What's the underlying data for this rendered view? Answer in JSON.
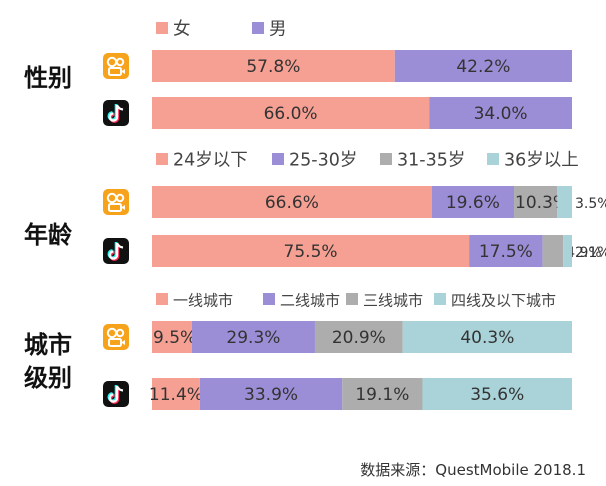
{
  "source": "数据来源：QuestMobile 2018.1",
  "apps": [
    {
      "icon": "kuaishou-app-icon",
      "color": "#f7a21b"
    },
    {
      "icon": "douyin-app-icon",
      "color": "#111111"
    }
  ],
  "chart_data": [
    {
      "type": "bar",
      "stacked": true,
      "orientation": "horizontal",
      "title": "性别",
      "legend": [
        "女",
        "男"
      ],
      "colors": [
        "#f6a093",
        "#9b8ed6"
      ],
      "rows": [
        {
          "app": "kuaishou",
          "values": [
            57.8,
            42.2
          ],
          "labels": [
            "57.8%",
            "42.2%"
          ]
        },
        {
          "app": "douyin",
          "values": [
            66.0,
            34.0
          ],
          "labels": [
            "66.0%",
            "34.0%"
          ]
        }
      ]
    },
    {
      "type": "bar",
      "stacked": true,
      "orientation": "horizontal",
      "title": "年龄",
      "legend": [
        "24岁以下",
        "25-30岁",
        "31-35岁",
        "36岁以上"
      ],
      "colors": [
        "#f6a093",
        "#9b8ed6",
        "#adadad",
        "#a9d3d9"
      ],
      "rows": [
        {
          "app": "kuaishou",
          "values": [
            66.6,
            19.6,
            10.3,
            3.5
          ],
          "labels": [
            "66.6%",
            "19.6%",
            "10.3%",
            "3.5%"
          ]
        },
        {
          "app": "douyin",
          "values": [
            75.5,
            17.5,
            4.9,
            2.1
          ],
          "labels": [
            "75.5%",
            "17.5%",
            "4.9%",
            "2.1%"
          ]
        }
      ]
    },
    {
      "type": "bar",
      "stacked": true,
      "orientation": "horizontal",
      "title": "城市级别",
      "title_lines": [
        "城市",
        "级别"
      ],
      "legend": [
        "一线城市",
        "二线城市",
        "三线城市",
        "四线及以下城市"
      ],
      "colors": [
        "#f6a093",
        "#9b8ed6",
        "#adadad",
        "#a9d3d9"
      ],
      "rows": [
        {
          "app": "kuaishou",
          "values": [
            9.5,
            29.3,
            20.9,
            40.3
          ],
          "labels": [
            "9.5%",
            "29.3%",
            "20.9%",
            "40.3%"
          ]
        },
        {
          "app": "douyin",
          "values": [
            11.4,
            33.9,
            19.1,
            35.6
          ],
          "labels": [
            "11.4%",
            "33.9%",
            "19.1%",
            "35.6%"
          ]
        }
      ]
    }
  ]
}
